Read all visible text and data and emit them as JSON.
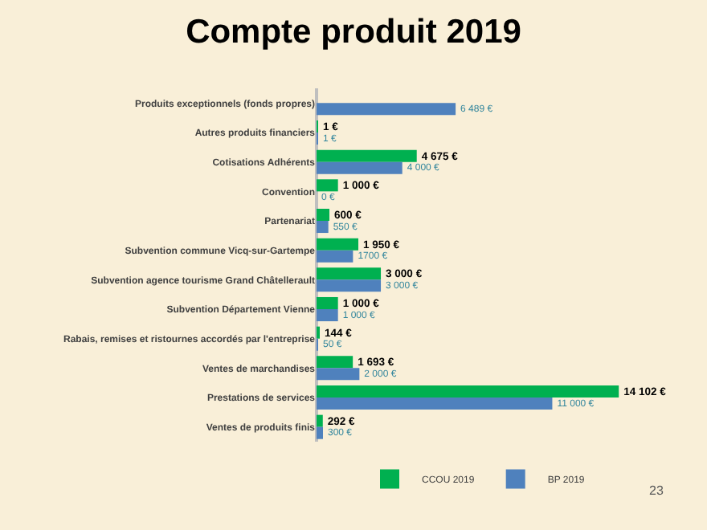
{
  "chart_data": {
    "type": "bar",
    "orientation": "horizontal",
    "title": "Compte produit 2019",
    "categories": [
      "Produits exceptionnels (fonds propres)",
      "Autres produits financiers",
      "Cotisations Adhérents",
      "Convention",
      "Partenariat",
      "Subvention commune Vicq-sur-Gartempe",
      "Subvention agence tourisme Grand Châtellerault",
      "Subvention Département Vienne",
      "Rabais, remises et ristournes accordés par l'entreprise",
      "Ventes de marchandises",
      "Prestations de services",
      "Ventes de produits finis"
    ],
    "series": [
      {
        "name": "CCOU 2019",
        "color": "#00b050",
        "values": [
          null,
          1,
          4675,
          1000,
          600,
          1950,
          3000,
          1000,
          144,
          1693,
          14102,
          292
        ],
        "value_labels": [
          null,
          "1 €",
          "4 675 €",
          "1 000 €",
          "600 €",
          "1 950 €",
          "3 000 €",
          "1 000 €",
          "144 €",
          "1 693 €",
          "14 102 €",
          "292 €"
        ]
      },
      {
        "name": "BP 2019",
        "color": "#4f81bd",
        "values": [
          6489,
          1,
          4000,
          0,
          550,
          1700,
          3000,
          1000,
          50,
          2000,
          11000,
          300
        ],
        "value_labels": [
          "6 489 €",
          "1 €",
          "4 000 €",
          "0 €",
          "550 €",
          "1700 €",
          "3 000 €",
          "1 000 €",
          "50 €",
          "2 000 €",
          "11 000 €",
          "300 €"
        ]
      }
    ],
    "legend": "bottom",
    "annotations": [
      "23"
    ]
  }
}
